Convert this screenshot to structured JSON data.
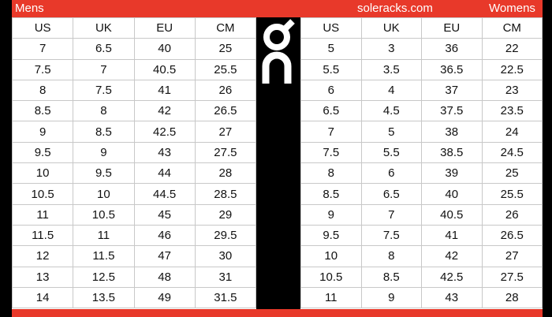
{
  "header": {
    "left_label": "Mens",
    "site": "soleracks.com",
    "right_label": "Womens"
  },
  "brand_color": "#e8392a",
  "logo": {
    "name": "On",
    "icon": "on-logo"
  },
  "mens": {
    "columns": [
      "US",
      "UK",
      "EU",
      "CM"
    ],
    "rows": [
      [
        "7",
        "6.5",
        "40",
        "25"
      ],
      [
        "7.5",
        "7",
        "40.5",
        "25.5"
      ],
      [
        "8",
        "7.5",
        "41",
        "26"
      ],
      [
        "8.5",
        "8",
        "42",
        "26.5"
      ],
      [
        "9",
        "8.5",
        "42.5",
        "27"
      ],
      [
        "9.5",
        "9",
        "43",
        "27.5"
      ],
      [
        "10",
        "9.5",
        "44",
        "28"
      ],
      [
        "10.5",
        "10",
        "44.5",
        "28.5"
      ],
      [
        "11",
        "10.5",
        "45",
        "29"
      ],
      [
        "11.5",
        "11",
        "46",
        "29.5"
      ],
      [
        "12",
        "11.5",
        "47",
        "30"
      ],
      [
        "13",
        "12.5",
        "48",
        "31"
      ],
      [
        "14",
        "13.5",
        "49",
        "31.5"
      ]
    ]
  },
  "womens": {
    "columns": [
      "US",
      "UK",
      "EU",
      "CM"
    ],
    "rows": [
      [
        "5",
        "3",
        "36",
        "22"
      ],
      [
        "5.5",
        "3.5",
        "36.5",
        "22.5"
      ],
      [
        "6",
        "4",
        "37",
        "23"
      ],
      [
        "6.5",
        "4.5",
        "37.5",
        "23.5"
      ],
      [
        "7",
        "5",
        "38",
        "24"
      ],
      [
        "7.5",
        "5.5",
        "38.5",
        "24.5"
      ],
      [
        "8",
        "6",
        "39",
        "25"
      ],
      [
        "8.5",
        "6.5",
        "40",
        "25.5"
      ],
      [
        "9",
        "7",
        "40.5",
        "26"
      ],
      [
        "9.5",
        "7.5",
        "41",
        "26.5"
      ],
      [
        "10",
        "8",
        "42",
        "27"
      ],
      [
        "10.5",
        "8.5",
        "42.5",
        "27.5"
      ],
      [
        "11",
        "9",
        "43",
        "28"
      ]
    ]
  }
}
